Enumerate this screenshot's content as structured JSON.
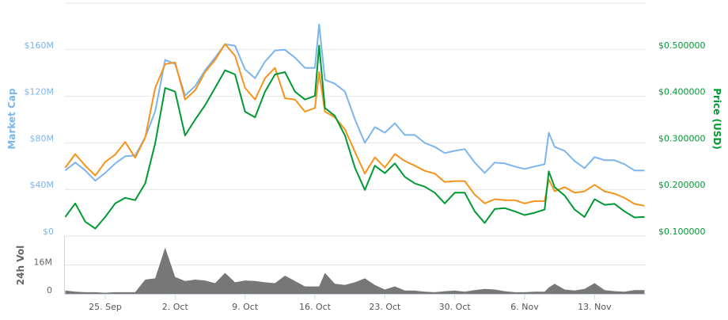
{
  "chart_data": {
    "type": "line",
    "x_ticks": [
      "25. Sep",
      "2. Oct",
      "9. Oct",
      "16. Oct",
      "23. Oct",
      "30. Oct",
      "6. Nov",
      "13. Nov"
    ],
    "x": [
      "21 Sep",
      "22 Sep",
      "23 Sep",
      "24 Sep",
      "25 Sep",
      "26 Sep",
      "27 Sep",
      "28 Sep",
      "29 Sep",
      "30 Sep",
      "1 Oct",
      "2 Oct",
      "3 Oct",
      "4 Oct",
      "5 Oct",
      "6 Oct",
      "7 Oct",
      "8 Oct",
      "9 Oct",
      "10 Oct",
      "11 Oct",
      "12 Oct",
      "13 Oct",
      "14 Oct",
      "15 Oct",
      "16 Oct",
      "16 Oct 10:00",
      "17 Oct",
      "18 Oct",
      "19 Oct",
      "20 Oct",
      "21 Oct",
      "22 Oct",
      "23 Oct",
      "24 Oct",
      "25 Oct",
      "26 Oct",
      "27 Oct",
      "28 Oct",
      "29 Oct",
      "30 Oct",
      "31 Oct",
      "1 Nov",
      "2 Nov",
      "3 Nov",
      "4 Nov",
      "5 Nov",
      "6 Nov",
      "7 Nov",
      "8 Nov",
      "8 Nov 10:00",
      "9 Nov",
      "10 Nov",
      "11 Nov",
      "12 Nov",
      "13 Nov",
      "14 Nov",
      "15 Nov",
      "16 Nov",
      "17 Nov",
      "18 Nov"
    ],
    "left_axis": {
      "label": "Market Cap",
      "ticks": [
        "$0",
        "$40M",
        "$80M",
        "$120M",
        "$160M"
      ],
      "range": [
        0,
        200000000
      ],
      "color": "#7cb5ec"
    },
    "right_axis": {
      "label": "Price (USD)",
      "ticks": [
        "$0.100000",
        "$0.200000",
        "$0.300000",
        "$0.400000",
        "$0.500000"
      ],
      "range": [
        0.1,
        0.6
      ],
      "color": "#009933"
    },
    "volume_axis": {
      "label": "24h Vol",
      "ticks": [
        "0",
        "16M"
      ],
      "range": [
        0,
        32000000
      ],
      "color": "#666666"
    },
    "grid": true,
    "series": [
      {
        "axis": "left",
        "color": "#7cb5ec",
        "values": [
          56300000,
          63100000,
          56300000,
          47500000,
          54200000,
          62400000,
          68500000,
          69200000,
          84700000,
          107100000,
          151200000,
          147800000,
          120700000,
          128800000,
          142400000,
          153200000,
          164700000,
          163400000,
          143100000,
          135600000,
          149800000,
          159300000,
          160000000,
          153200000,
          144400000,
          144400000,
          181700000,
          134200000,
          130800000,
          124100000,
          100300000,
          80000000,
          93600000,
          88800000,
          96900000,
          86800000,
          86800000,
          80000000,
          76600000,
          71200000,
          73200000,
          74600000,
          63100000,
          54200000,
          63100000,
          62400000,
          59700000,
          57600000,
          59700000,
          61700000,
          88800000,
          76600000,
          73200000,
          64400000,
          58300000,
          67800000,
          65100000,
          65100000,
          61700000,
          56300000,
          56300000
        ]
      },
      {
        "axis": "right",
        "color": "#f7931a",
        "values": [
          0.247,
          0.276,
          0.251,
          0.23,
          0.259,
          0.275,
          0.302,
          0.268,
          0.311,
          0.418,
          0.469,
          0.473,
          0.393,
          0.413,
          0.452,
          0.478,
          0.512,
          0.487,
          0.418,
          0.393,
          0.439,
          0.461,
          0.396,
          0.393,
          0.367,
          0.375,
          0.452,
          0.367,
          0.355,
          0.329,
          0.281,
          0.234,
          0.269,
          0.247,
          0.276,
          0.261,
          0.251,
          0.24,
          0.234,
          0.216,
          0.218,
          0.218,
          0.189,
          0.17,
          0.179,
          0.177,
          0.177,
          0.17,
          0.175,
          0.175,
          0.222,
          0.196,
          0.205,
          0.193,
          0.196,
          0.21,
          0.196,
          0.191,
          0.182,
          0.169,
          0.165
        ]
      },
      {
        "axis": "right",
        "color": "#009933",
        "values": [
          0.141,
          0.17,
          0.131,
          0.116,
          0.141,
          0.17,
          0.182,
          0.177,
          0.213,
          0.299,
          0.418,
          0.41,
          0.316,
          0.35,
          0.381,
          0.418,
          0.456,
          0.447,
          0.367,
          0.355,
          0.41,
          0.447,
          0.452,
          0.41,
          0.393,
          0.401,
          0.509,
          0.375,
          0.358,
          0.316,
          0.247,
          0.199,
          0.251,
          0.235,
          0.256,
          0.227,
          0.213,
          0.206,
          0.193,
          0.17,
          0.193,
          0.193,
          0.153,
          0.128,
          0.158,
          0.16,
          0.153,
          0.145,
          0.15,
          0.157,
          0.239,
          0.205,
          0.187,
          0.157,
          0.141,
          0.179,
          0.167,
          0.169,
          0.153,
          0.14,
          0.141
        ]
      },
      {
        "axis": "volume",
        "type": "area",
        "color": "#777777",
        "values": [
          1900000,
          1200000,
          900000,
          900000,
          600000,
          900000,
          900000,
          900000,
          7900000,
          8600000,
          25600000,
          9300000,
          7100000,
          7900000,
          7400000,
          5900000,
          11600000,
          6400000,
          7400000,
          7100000,
          6400000,
          5900000,
          10100000,
          7100000,
          4100000,
          4100000,
          4100000,
          11600000,
          5600000,
          4900000,
          6400000,
          8600000,
          4900000,
          2400000,
          4100000,
          1900000,
          1800000,
          1200000,
          900000,
          1500000,
          1800000,
          1200000,
          2100000,
          2700000,
          2400000,
          1500000,
          900000,
          900000,
          1200000,
          1200000,
          3500000,
          5600000,
          2400000,
          1900000,
          2700000,
          5900000,
          2100000,
          1500000,
          1200000,
          2100000,
          2100000
        ]
      }
    ]
  }
}
